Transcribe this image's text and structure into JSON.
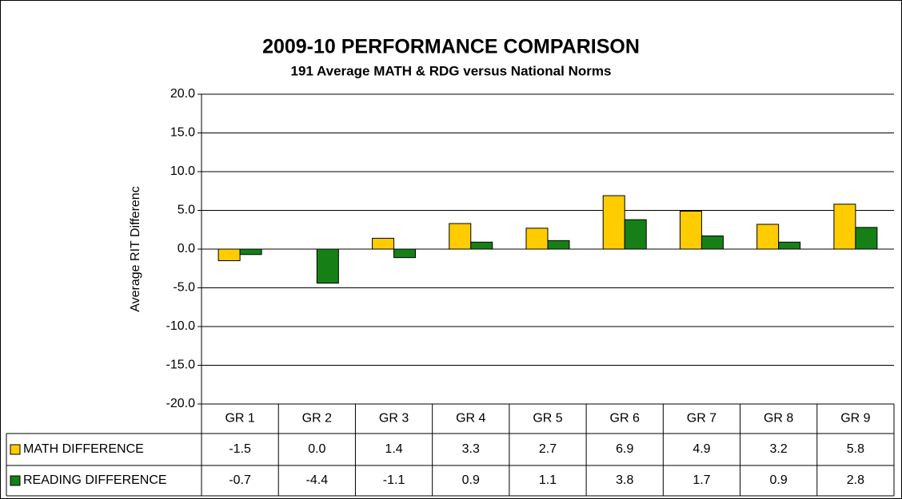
{
  "chart_data": {
    "type": "bar",
    "title": "2009-10 PERFORMANCE COMPARISON",
    "subtitle": "191 Average MATH & RDG versus National Norms",
    "y_label": "Average RIT Differenc",
    "categories": [
      "GR 1",
      "GR 2",
      "GR 3",
      "GR 4",
      "GR 5",
      "GR 6",
      "GR 7",
      "GR 8",
      "GR 9"
    ],
    "series": [
      {
        "name": "MATH DIFFERENCE",
        "color": "#ffcc00",
        "values": [
          -1.5,
          0.0,
          1.4,
          3.3,
          2.7,
          6.9,
          4.9,
          3.2,
          5.8
        ],
        "value_labels": [
          "-1.5",
          "0.0",
          "1.4",
          "3.3",
          "2.7",
          "6.9",
          "4.9",
          "3.2",
          "5.8"
        ]
      },
      {
        "name": "READING DIFFERENCE",
        "color": "#168016",
        "values": [
          -0.7,
          -4.4,
          -1.1,
          0.9,
          1.1,
          3.8,
          1.7,
          0.9,
          2.8
        ],
        "value_labels": [
          "-0.7",
          "-4.4",
          "-1.1",
          "0.9",
          "1.1",
          "3.8",
          "1.7",
          "0.9",
          "2.8"
        ]
      }
    ],
    "ylim": [
      -20,
      20
    ],
    "yticks": [
      {
        "value": 20,
        "label": "20.0"
      },
      {
        "value": 15,
        "label": "15.0"
      },
      {
        "value": 10,
        "label": "10.0"
      },
      {
        "value": 5,
        "label": "5.0"
      },
      {
        "value": 0,
        "label": "0.0"
      },
      {
        "value": -5,
        "label": "-5.0"
      },
      {
        "value": -10,
        "label": "-10.0"
      },
      {
        "value": -15,
        "label": "-15.0"
      },
      {
        "value": -20,
        "label": "-20.0"
      }
    ],
    "grid": true
  }
}
